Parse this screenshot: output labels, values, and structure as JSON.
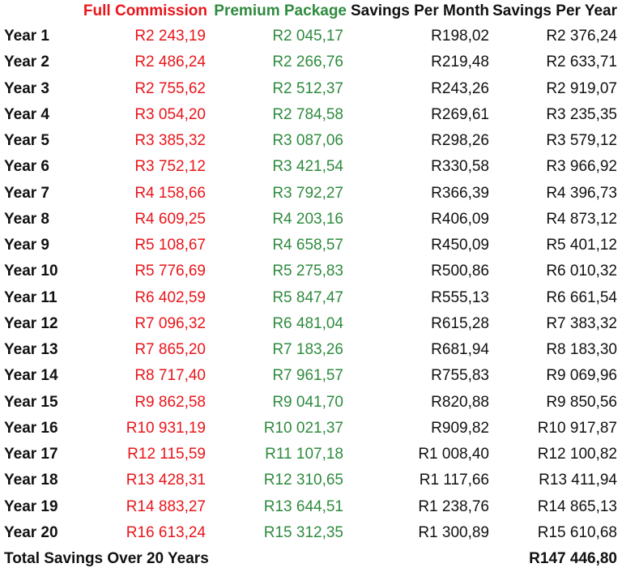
{
  "colors": {
    "full_commission": "#e8161b",
    "premium_package": "#2e8b3e",
    "text": "#111111"
  },
  "headers": {
    "full_commission": "Full Commission",
    "premium_package": "Premium Package",
    "savings_per_month": "Savings Per Month",
    "savings_per_year": "Savings Per Year"
  },
  "rows": [
    {
      "year": "Year 1",
      "full": "R2 243,19",
      "premium": "R2 045,17",
      "month": "R198,02",
      "yearly": "R2 376,24"
    },
    {
      "year": "Year 2",
      "full": "R2 486,24",
      "premium": "R2 266,76",
      "month": "R219,48",
      "yearly": "R2 633,71"
    },
    {
      "year": "Year 3",
      "full": "R2 755,62",
      "premium": "R2 512,37",
      "month": "R243,26",
      "yearly": "R2 919,07"
    },
    {
      "year": "Year 4",
      "full": "R3 054,20",
      "premium": "R2 784,58",
      "month": "R269,61",
      "yearly": "R3 235,35"
    },
    {
      "year": "Year 5",
      "full": "R3 385,32",
      "premium": "R3 087,06",
      "month": "R298,26",
      "yearly": "R3 579,12"
    },
    {
      "year": "Year 6",
      "full": "R3 752,12",
      "premium": "R3 421,54",
      "month": "R330,58",
      "yearly": "R3 966,92"
    },
    {
      "year": "Year 7",
      "full": "R4 158,66",
      "premium": "R3 792,27",
      "month": "R366,39",
      "yearly": "R4 396,73"
    },
    {
      "year": "Year 8",
      "full": "R4 609,25",
      "premium": "R4 203,16",
      "month": "R406,09",
      "yearly": "R4 873,12"
    },
    {
      "year": "Year 9",
      "full": "R5 108,67",
      "premium": "R4 658,57",
      "month": "R450,09",
      "yearly": "R5 401,12"
    },
    {
      "year": "Year 10",
      "full": "R5 776,69",
      "premium": "R5 275,83",
      "month": "R500,86",
      "yearly": "R6 010,32"
    },
    {
      "year": "Year 11",
      "full": "R6 402,59",
      "premium": "R5 847,47",
      "month": "R555,13",
      "yearly": "R6 661,54"
    },
    {
      "year": "Year 12",
      "full": "R7 096,32",
      "premium": "R6 481,04",
      "month": "R615,28",
      "yearly": "R7 383,32"
    },
    {
      "year": "Year 13",
      "full": "R7 865,20",
      "premium": "R7 183,26",
      "month": "R681,94",
      "yearly": "R8 183,30"
    },
    {
      "year": "Year 14",
      "full": "R8 717,40",
      "premium": "R7 961,57",
      "month": "R755,83",
      "yearly": "R9 069,96"
    },
    {
      "year": "Year 15",
      "full": "R9 862,58",
      "premium": "R9 041,70",
      "month": "R820,88",
      "yearly": "R9 850,56"
    },
    {
      "year": "Year 16",
      "full": "R10 931,19",
      "premium": "R10 021,37",
      "month": "R909,82",
      "yearly": "R10 917,87"
    },
    {
      "year": "Year 17",
      "full": "R12 115,59",
      "premium": "R11 107,18",
      "month": "R1 008,40",
      "yearly": "R12 100,82"
    },
    {
      "year": "Year 18",
      "full": "R13 428,31",
      "premium": "R12 310,65",
      "month": "R1 117,66",
      "yearly": "R13 411,94"
    },
    {
      "year": "Year 19",
      "full": "R14 883,27",
      "premium": "R13 644,51",
      "month": "R1 238,76",
      "yearly": "R14 865,13"
    },
    {
      "year": "Year 20",
      "full": "R16 613,24",
      "premium": "R15 312,35",
      "month": "R1 300,89",
      "yearly": "R15 610,68"
    }
  ],
  "total": {
    "label": "Total Savings Over 20 Years",
    "value": "R147 446,80"
  }
}
